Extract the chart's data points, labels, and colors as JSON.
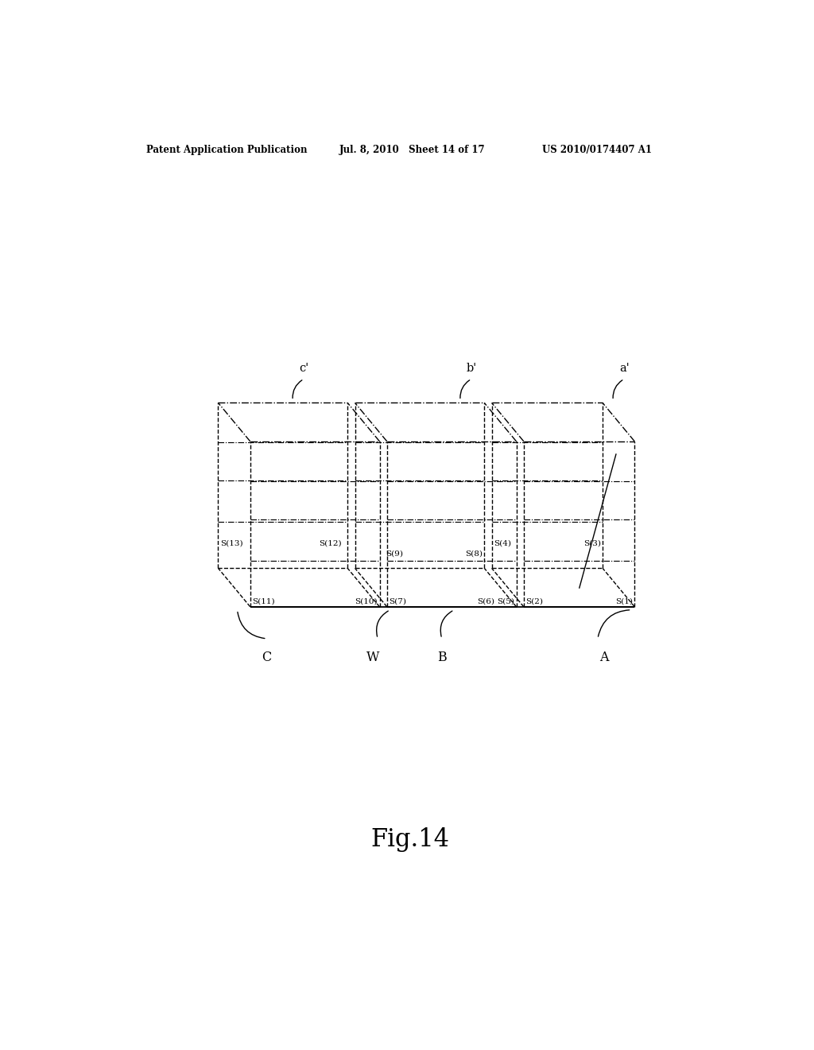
{
  "header_left": "Patent Application Publication",
  "header_mid": "Jul. 8, 2010   Sheet 14 of 17",
  "header_right": "US 2010/0174407 A1",
  "figure_label": "Fig.14",
  "background_color": "#ffffff",
  "line_color": "#000000",
  "fig_width": 10.24,
  "fig_height": 13.2,
  "dpi": 100,
  "panel_a_label": "a'",
  "panel_b_label": "b'",
  "panel_c_label": "c'",
  "bottom_labels": [
    "A",
    "W",
    "B",
    "C"
  ],
  "seg_labels_bottom_A": [
    "S(1)",
    "S(2)"
  ],
  "seg_labels_back_A": [
    "S(3)",
    "S(4)"
  ],
  "seg_labels_bottom_B": [
    "S(5)",
    "S(6)",
    "S(7)"
  ],
  "seg_labels_back_B": [
    "S(8)",
    "S(9)"
  ],
  "seg_labels_bottom_C": [
    "S(10)",
    "S(11)"
  ],
  "seg_labels_back_C": [
    "S(12)",
    "S(13)"
  ]
}
